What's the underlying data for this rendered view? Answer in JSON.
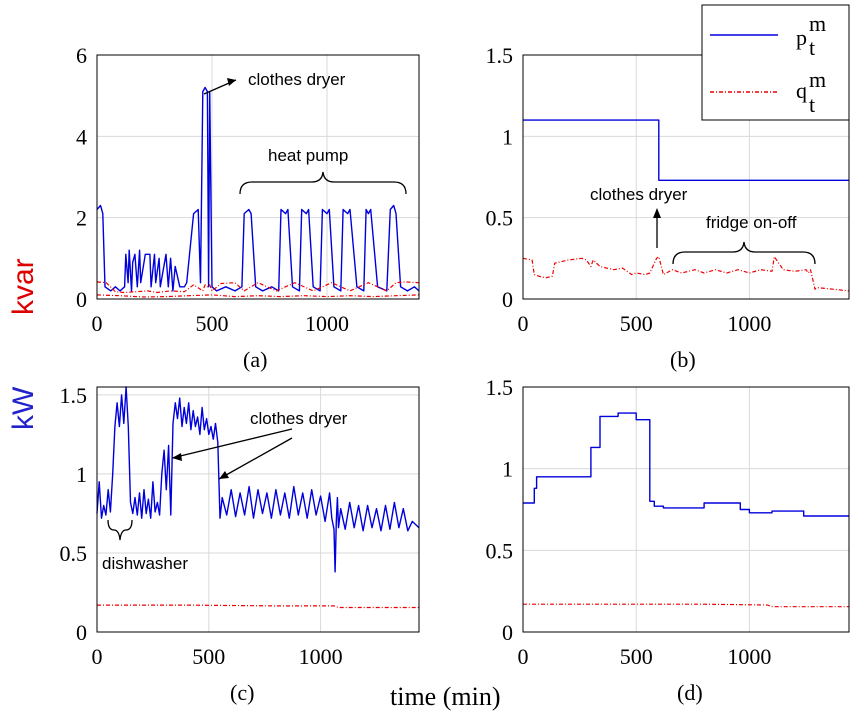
{
  "chart_data": [
    {
      "type": "line",
      "panel": "(a)",
      "xlim": [
        0,
        1400
      ],
      "ylim": [
        0,
        6
      ],
      "xticks": [
        "0",
        "500",
        "1000"
      ],
      "yticks": [
        "0",
        "2",
        "4",
        "6"
      ],
      "series": [
        {
          "name": "p",
          "color": "#0000dd",
          "x": [
            0,
            15,
            25,
            35,
            60,
            80,
            100,
            120,
            125,
            135,
            140,
            150,
            155,
            165,
            175,
            185,
            190,
            210,
            230,
            235,
            250,
            255,
            270,
            275,
            300,
            310,
            320,
            330,
            340,
            360,
            380,
            390,
            420,
            440,
            450,
            460,
            470,
            480,
            485,
            490,
            500,
            520,
            560,
            600,
            630,
            640,
            660,
            670,
            690,
            720,
            760,
            790,
            800,
            820,
            830,
            850,
            880,
            890,
            910,
            920,
            940,
            970,
            980,
            1000,
            1010,
            1030,
            1060,
            1070,
            1090,
            1100,
            1130,
            1160,
            1170,
            1180,
            1190,
            1220,
            1260,
            1275,
            1290,
            1300,
            1320,
            1350,
            1380,
            1400
          ],
          "y": [
            2.2,
            2.3,
            2.1,
            0.3,
            0.2,
            0.3,
            0.2,
            0.3,
            1.1,
            0.4,
            1.2,
            0.2,
            0.9,
            1.1,
            0.3,
            1.2,
            0.4,
            1.1,
            1.1,
            0.3,
            1.1,
            0.4,
            1.0,
            0.3,
            1.1,
            0.3,
            1.0,
            0.2,
            0.8,
            0.3,
            0.3,
            0.4,
            2.1,
            2.2,
            0.4,
            5.1,
            5.2,
            5.1,
            0.3,
            5.1,
            0.3,
            0.2,
            0.3,
            0.2,
            0.3,
            2.1,
            2.2,
            2.1,
            0.3,
            0.2,
            0.3,
            0.2,
            2.2,
            2.1,
            2.2,
            0.3,
            0.2,
            2.2,
            2.1,
            2.2,
            0.3,
            0.2,
            2.2,
            2.1,
            2.2,
            0.3,
            0.2,
            2.2,
            2.1,
            2.2,
            0.3,
            0.2,
            2.2,
            2.1,
            2.2,
            0.3,
            0.2,
            2.2,
            2.3,
            2.1,
            0.3,
            0.2,
            0.3,
            0.2
          ]
        },
        {
          "name": "q",
          "color": "#ee0000",
          "x": [
            0,
            40,
            80,
            120,
            170,
            220,
            260,
            320,
            380,
            420,
            460,
            470,
            480,
            490,
            500,
            540,
            600,
            640,
            700,
            780,
            860,
            940,
            1020,
            1100,
            1180,
            1260,
            1300,
            1340,
            1400
          ],
          "y": [
            0.42,
            0.4,
            0.18,
            0.16,
            0.18,
            0.2,
            0.16,
            0.2,
            0.18,
            0.35,
            0.2,
            0.35,
            0.3,
            0.35,
            0.2,
            0.38,
            0.4,
            0.2,
            0.4,
            0.2,
            0.4,
            0.2,
            0.4,
            0.2,
            0.4,
            0.2,
            0.4,
            0.42,
            0.4
          ]
        },
        {
          "name": "q-low",
          "color": "#ee0000",
          "x": [
            0,
            100,
            200,
            300,
            400,
            500,
            600,
            700,
            800,
            900,
            1000,
            1100,
            1200,
            1300,
            1400
          ],
          "y": [
            0.1,
            0.08,
            0.05,
            0.06,
            0.08,
            0.1,
            0.06,
            0.08,
            0.06,
            0.08,
            0.06,
            0.08,
            0.06,
            0.08,
            0.1
          ]
        }
      ],
      "annotations": [
        "clothes dryer",
        "heat pump"
      ]
    },
    {
      "type": "line",
      "panel": "(b)",
      "xlim": [
        0,
        1440
      ],
      "ylim": [
        0,
        1.5
      ],
      "xticks": [
        "0",
        "500",
        "1000"
      ],
      "yticks": [
        "0",
        "0.5",
        "1",
        "1.5"
      ],
      "series": [
        {
          "name": "p",
          "color": "#0000dd",
          "x": [
            0,
            600,
            600,
            1440
          ],
          "y": [
            1.1,
            1.1,
            0.73,
            0.73
          ]
        },
        {
          "name": "q",
          "color": "#ee0000",
          "x": [
            0,
            40,
            50,
            70,
            100,
            130,
            140,
            200,
            260,
            280,
            300,
            310,
            340,
            400,
            440,
            460,
            480,
            500,
            540,
            560,
            590,
            600,
            620,
            660,
            700,
            760,
            800,
            850,
            900,
            950,
            1000,
            1050,
            1100,
            1110,
            1150,
            1200,
            1250,
            1260,
            1270,
            1290,
            1300,
            1440
          ],
          "y": [
            0.25,
            0.24,
            0.15,
            0.14,
            0.13,
            0.14,
            0.22,
            0.24,
            0.25,
            0.24,
            0.2,
            0.24,
            0.2,
            0.18,
            0.19,
            0.17,
            0.15,
            0.16,
            0.15,
            0.16,
            0.25,
            0.26,
            0.15,
            0.18,
            0.16,
            0.18,
            0.16,
            0.18,
            0.16,
            0.18,
            0.16,
            0.18,
            0.17,
            0.26,
            0.18,
            0.17,
            0.18,
            0.16,
            0.18,
            0.06,
            0.07,
            0.05
          ]
        }
      ],
      "annotations": [
        "clothes dryer",
        "fridge on-off"
      ]
    },
    {
      "type": "line",
      "panel": "(c)",
      "xlim": [
        0,
        1440
      ],
      "ylim": [
        0,
        1.55
      ],
      "xticks": [
        "0",
        "500",
        "1000"
      ],
      "yticks": [
        "0",
        "0.5",
        "1",
        "1.5"
      ],
      "series": [
        {
          "name": "p",
          "color": "#0000dd",
          "x": [
            0,
            10,
            20,
            30,
            40,
            50,
            60,
            70,
            80,
            90,
            100,
            110,
            120,
            130,
            140,
            150,
            160,
            170,
            180,
            190,
            200,
            210,
            220,
            230,
            240,
            250,
            260,
            270,
            280,
            290,
            300,
            310,
            320,
            330,
            340,
            350,
            360,
            370,
            380,
            390,
            400,
            410,
            420,
            430,
            440,
            450,
            460,
            470,
            480,
            490,
            500,
            510,
            520,
            530,
            540,
            550,
            560,
            580,
            600,
            620,
            640,
            660,
            680,
            700,
            720,
            740,
            760,
            780,
            800,
            820,
            840,
            860,
            880,
            900,
            920,
            940,
            960,
            980,
            1000,
            1020,
            1040,
            1050,
            1060,
            1065,
            1070,
            1075,
            1080,
            1090,
            1110,
            1130,
            1150,
            1170,
            1190,
            1210,
            1230,
            1250,
            1270,
            1290,
            1310,
            1330,
            1350,
            1370,
            1390,
            1410,
            1440
          ],
          "y": [
            0.75,
            0.95,
            0.72,
            0.8,
            0.74,
            0.9,
            0.76,
            1.0,
            1.3,
            1.45,
            1.3,
            1.5,
            1.32,
            1.55,
            1.3,
            0.82,
            0.75,
            0.85,
            0.74,
            0.88,
            0.72,
            0.9,
            0.75,
            0.84,
            0.72,
            0.95,
            0.76,
            0.82,
            0.74,
            1.0,
            1.15,
            0.9,
            1.18,
            0.74,
            1.32,
            1.45,
            1.35,
            1.48,
            1.3,
            1.42,
            1.32,
            1.45,
            1.28,
            1.4,
            1.3,
            1.36,
            1.25,
            1.42,
            1.28,
            1.35,
            1.25,
            1.3,
            1.22,
            1.32,
            1.2,
            0.72,
            0.85,
            0.74,
            0.9,
            0.73,
            0.88,
            0.74,
            0.92,
            0.72,
            0.9,
            0.75,
            0.88,
            0.72,
            0.9,
            0.74,
            0.88,
            0.72,
            0.92,
            0.74,
            0.88,
            0.72,
            0.9,
            0.74,
            0.86,
            0.7,
            0.88,
            0.72,
            0.65,
            0.38,
            0.7,
            0.85,
            0.66,
            0.78,
            0.65,
            0.82,
            0.66,
            0.8,
            0.64,
            0.8,
            0.66,
            0.78,
            0.64,
            0.8,
            0.65,
            0.82,
            0.66,
            0.78,
            0.64,
            0.7,
            0.66
          ]
        },
        {
          "name": "q",
          "color": "#ee0000",
          "x": [
            0,
            400,
            800,
            1060,
            1080,
            1440
          ],
          "y": [
            0.17,
            0.17,
            0.165,
            0.165,
            0.155,
            0.155
          ]
        }
      ],
      "annotations": [
        "clothes dryer",
        "dishwasher"
      ]
    },
    {
      "type": "line",
      "panel": "(d)",
      "xlim": [
        0,
        1440
      ],
      "ylim": [
        0,
        1.5
      ],
      "xticks": [
        "0",
        "500",
        "1000"
      ],
      "yticks": [
        "0",
        "0.5",
        "1",
        "1.5"
      ],
      "series": [
        {
          "name": "p",
          "color": "#0000dd",
          "x": [
            0,
            50,
            50,
            60,
            60,
            300,
            300,
            340,
            340,
            420,
            420,
            500,
            500,
            560,
            560,
            580,
            580,
            620,
            620,
            800,
            800,
            960,
            960,
            1000,
            1000,
            1100,
            1100,
            1240,
            1240,
            1440
          ],
          "y": [
            0.79,
            0.79,
            0.88,
            0.88,
            0.95,
            0.95,
            1.13,
            1.13,
            1.32,
            1.32,
            1.34,
            1.34,
            1.3,
            1.3,
            0.8,
            0.8,
            0.77,
            0.77,
            0.76,
            0.76,
            0.79,
            0.79,
            0.75,
            0.75,
            0.73,
            0.73,
            0.74,
            0.74,
            0.71,
            0.71
          ]
        },
        {
          "name": "q",
          "color": "#ee0000",
          "x": [
            0,
            400,
            800,
            1080,
            1100,
            1440
          ],
          "y": [
            0.17,
            0.17,
            0.17,
            0.165,
            0.155,
            0.155
          ]
        }
      ],
      "annotations": []
    }
  ],
  "figure": {
    "labels": [
      "(a)",
      "(b)",
      "(c)",
      "(d)"
    ],
    "ylabel_kw": "kW",
    "ylabel_kvar": "kvar",
    "xlabel": "time (min)",
    "legend": [
      {
        "base": "p",
        "sup": "m",
        "sub": "t",
        "color": "#0000dd",
        "style": "solid"
      },
      {
        "base": "q",
        "sup": "m",
        "sub": "t",
        "color": "#ee0000",
        "style": "dashdot"
      }
    ],
    "colors": {
      "kw": "#2222cc",
      "kvar": "#dd0000"
    }
  }
}
